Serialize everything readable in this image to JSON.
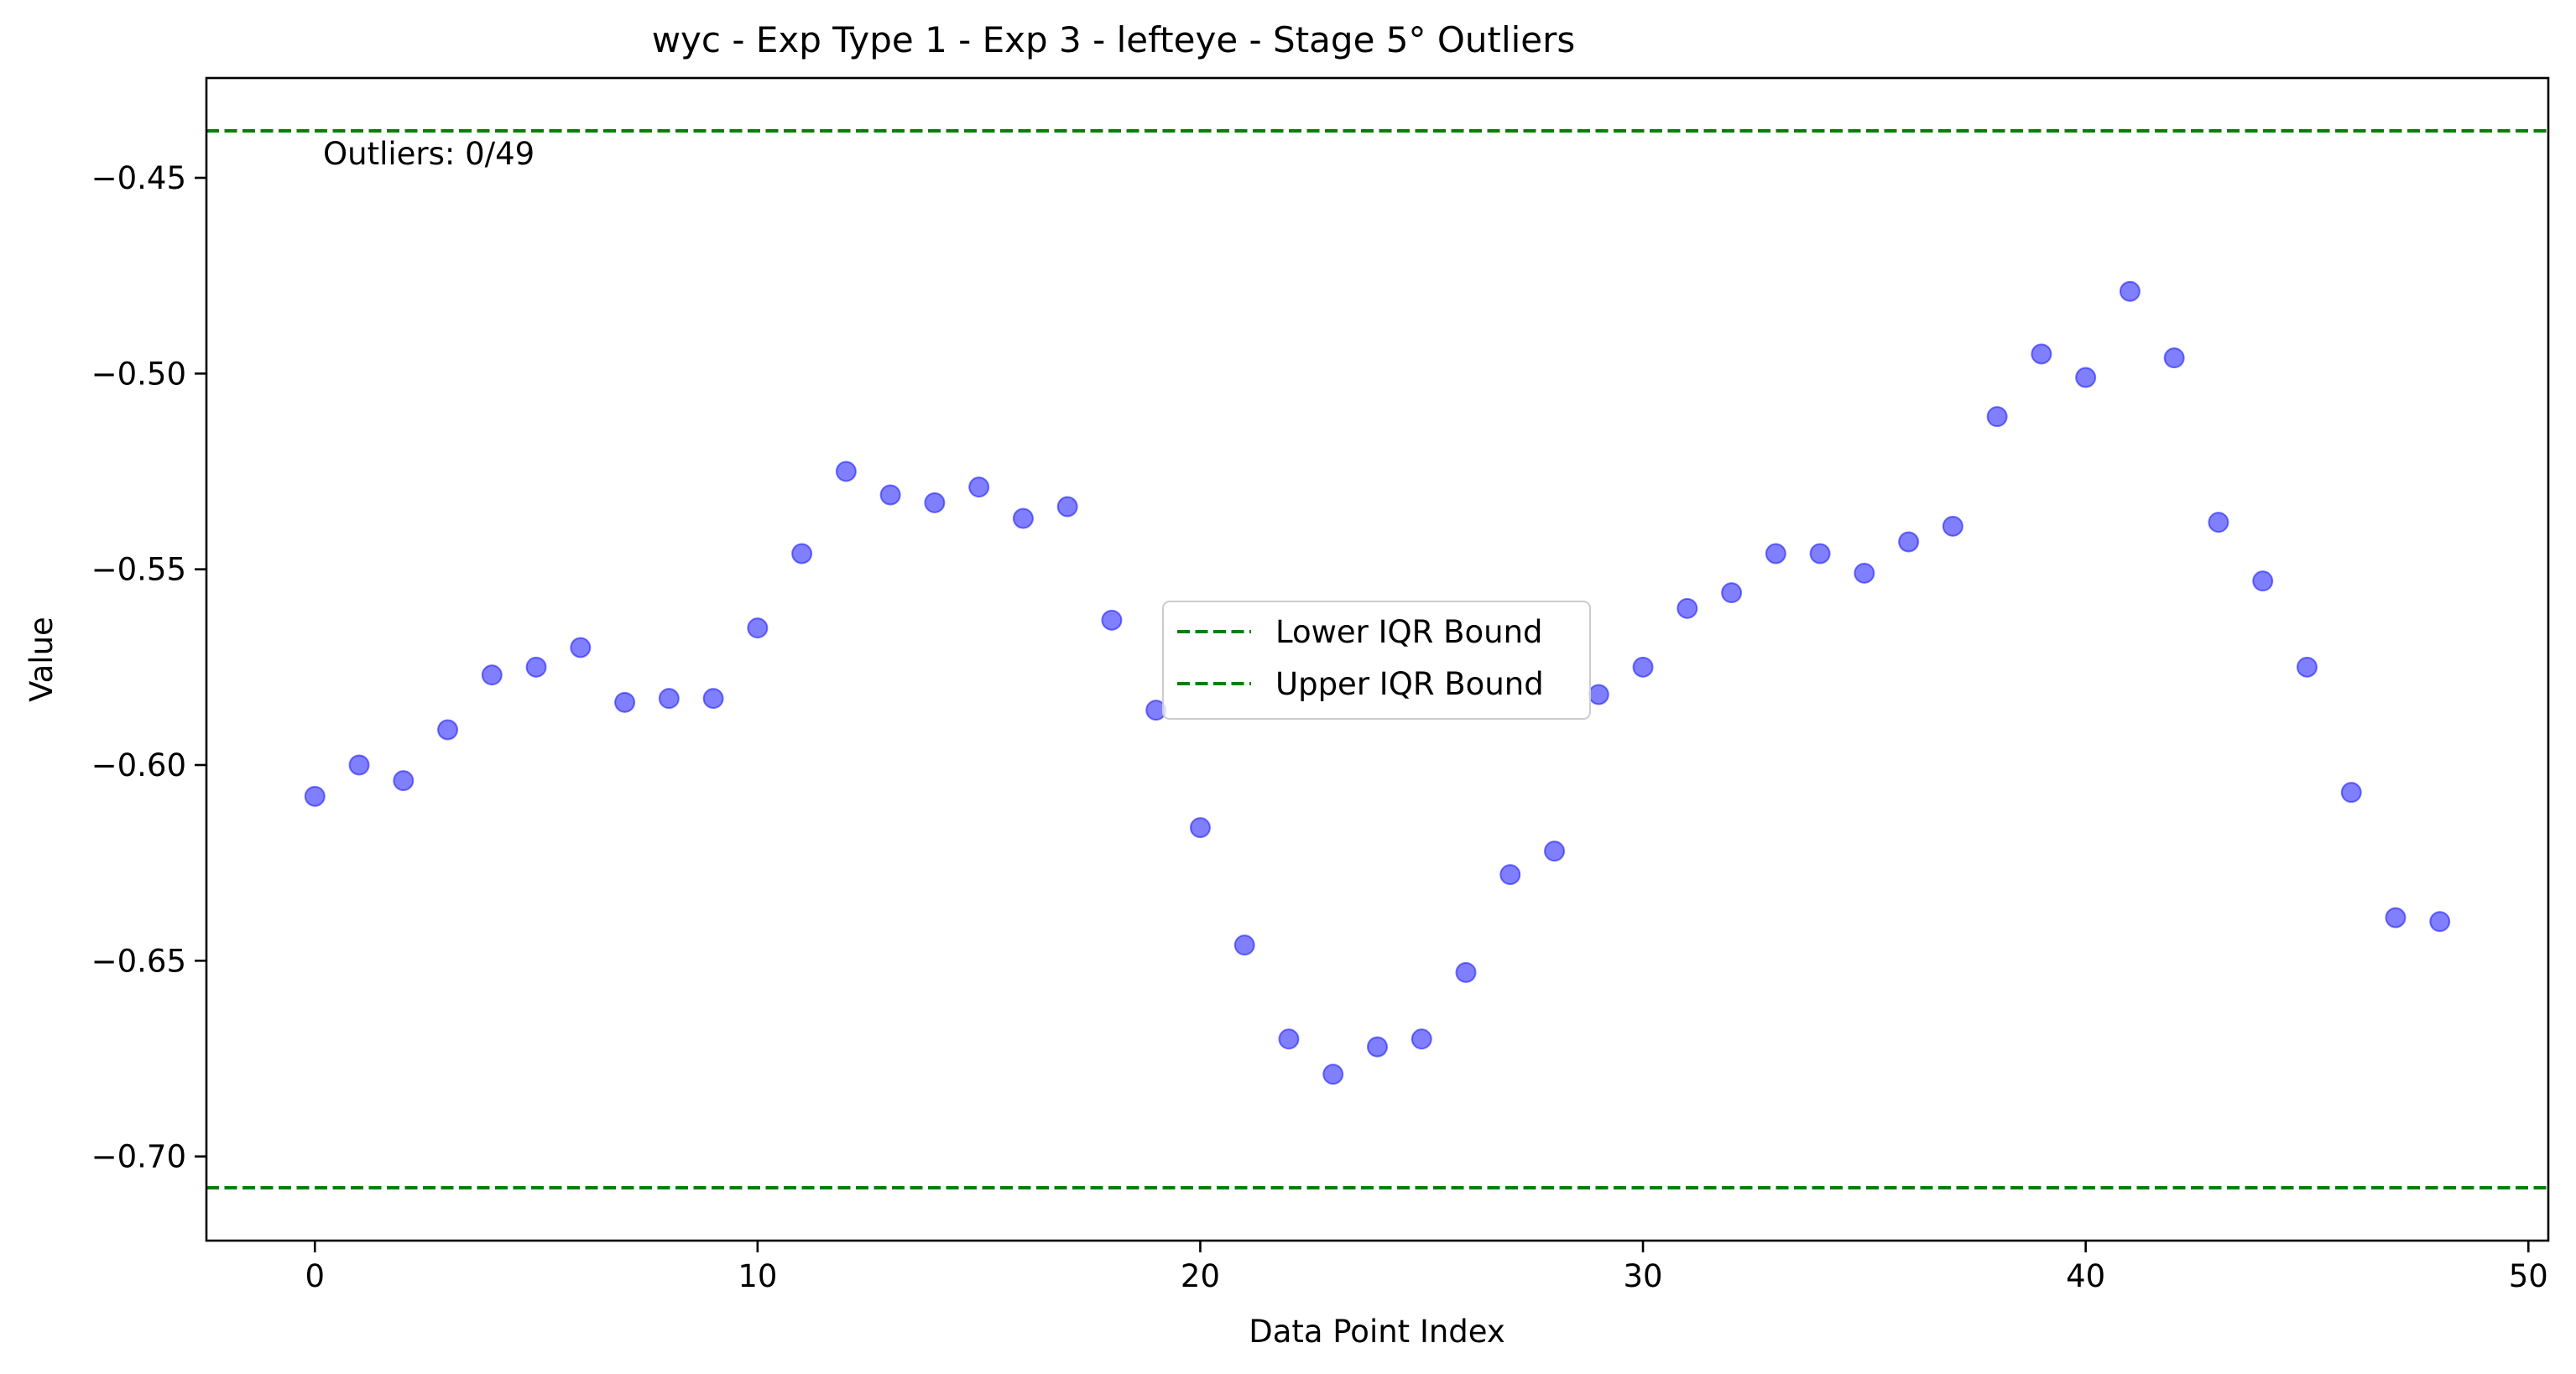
{
  "chart_data": {
    "type": "scatter",
    "title": "wyc - Exp Type 1 - Exp 3 - lefteye - Stage 5° Outliers",
    "xlabel": "Data Point Index",
    "ylabel": "Value",
    "xlim": [
      -2.45,
      50.45
    ],
    "ylim": [
      -0.7215,
      -0.4245
    ],
    "xticks": [
      0,
      10,
      20,
      30,
      40,
      50
    ],
    "yticks": [
      -0.7,
      -0.65,
      -0.6,
      -0.55,
      -0.5,
      -0.45
    ],
    "ytick_labels": [
      "−0.70",
      "−0.65",
      "−0.60",
      "−0.55",
      "−0.50",
      "−0.45"
    ],
    "grid": false,
    "legend_position": "center",
    "annotation": "Outliers: 0/49",
    "reference_lines": [
      {
        "name": "Lower IQR Bound",
        "y": -0.708,
        "color": "#008000",
        "style": "dashed"
      },
      {
        "name": "Upper IQR Bound",
        "y": -0.438,
        "color": "#008000",
        "style": "dashed"
      }
    ],
    "series": [
      {
        "color": "#0000ff",
        "alpha": 0.5,
        "x": [
          0,
          1,
          2,
          3,
          4,
          5,
          6,
          7,
          8,
          9,
          10,
          11,
          12,
          13,
          14,
          15,
          16,
          17,
          18,
          19,
          20,
          21,
          22,
          23,
          24,
          25,
          26,
          27,
          28,
          29,
          30,
          31,
          32,
          33,
          34,
          35,
          36,
          37,
          38,
          39,
          40,
          41,
          42,
          43,
          44,
          45,
          46,
          47,
          48
        ],
        "y": [
          -0.608,
          -0.6,
          -0.604,
          -0.591,
          -0.577,
          -0.575,
          -0.57,
          -0.584,
          -0.583,
          -0.583,
          -0.565,
          -0.546,
          -0.525,
          -0.531,
          -0.533,
          -0.529,
          -0.537,
          -0.534,
          -0.563,
          -0.586,
          -0.616,
          -0.646,
          -0.67,
          -0.679,
          -0.672,
          -0.67,
          -0.653,
          -0.628,
          -0.622,
          -0.582,
          -0.575,
          -0.56,
          -0.556,
          -0.546,
          -0.546,
          -0.551,
          -0.543,
          -0.539,
          -0.511,
          -0.495,
          -0.501,
          -0.479,
          -0.496,
          -0.538,
          -0.553,
          -0.575,
          -0.607,
          -0.639,
          -0.64
        ]
      }
    ]
  }
}
